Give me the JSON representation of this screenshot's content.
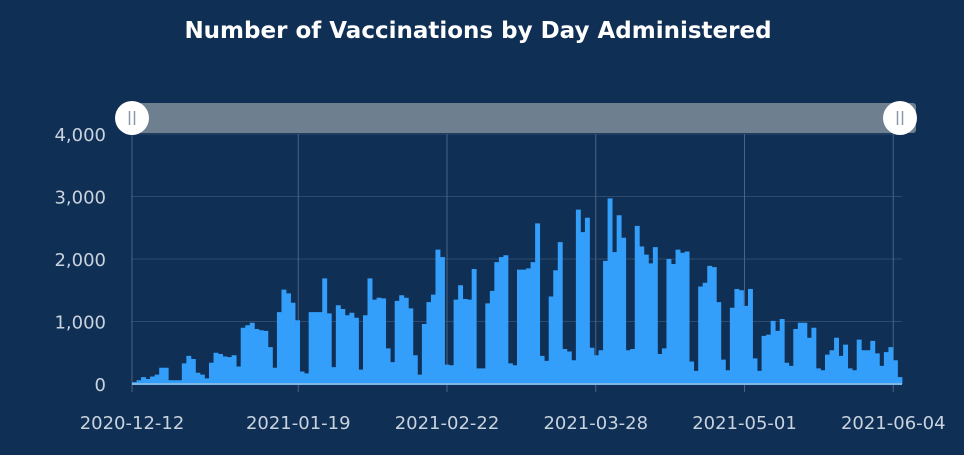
{
  "chart_data": {
    "type": "bar",
    "title": "Number of Vaccinations by Day Administered",
    "xlabel": "",
    "ylabel": "",
    "x_start": "2020-12-12",
    "x_end": "2021-06-06",
    "x_ticks": [
      "2020-12-12",
      "2021-01-19",
      "2021-02-22",
      "2021-03-28",
      "2021-05-01",
      "2021-06-04"
    ],
    "ylim": [
      0,
      4000
    ],
    "y_ticks": [
      0,
      1000,
      2000,
      3000,
      4000
    ],
    "y_tick_labels": [
      "0",
      "1,000",
      "2,000",
      "3,000",
      "4,000"
    ],
    "grid": true,
    "range_slider": {
      "visible": true,
      "from": "2020-12-12",
      "to": "2021-06-06"
    },
    "colors": {
      "background": "#102f54",
      "bar": "#339ffb",
      "grid": "#2e4a6e",
      "slider_track": "#6e7f90",
      "slider_handle": "#ffffff",
      "text": "#c9d3df",
      "title": "#ffffff"
    },
    "values": [
      30,
      60,
      110,
      80,
      120,
      150,
      260,
      260,
      60,
      60,
      60,
      330,
      450,
      400,
      180,
      150,
      90,
      340,
      500,
      480,
      440,
      430,
      460,
      280,
      900,
      940,
      980,
      880,
      860,
      850,
      590,
      260,
      1150,
      1510,
      1450,
      1300,
      1020,
      200,
      170,
      1150,
      1150,
      1150,
      1690,
      1130,
      270,
      1260,
      1200,
      1100,
      1140,
      1060,
      230,
      1100,
      1690,
      1350,
      1380,
      1370,
      570,
      350,
      1330,
      1420,
      1380,
      1210,
      460,
      150,
      960,
      1310,
      1430,
      2150,
      2030,
      310,
      300,
      1350,
      1580,
      1360,
      1350,
      1840,
      250,
      250,
      1290,
      1490,
      1950,
      2030,
      2060,
      330,
      300,
      1830,
      1830,
      1850,
      1950,
      2570,
      450,
      370,
      1400,
      1820,
      2270,
      560,
      520,
      380,
      2790,
      2430,
      2660,
      580,
      460,
      540,
      1970,
      2970,
      2110,
      2700,
      2340,
      540,
      560,
      2530,
      2200,
      2070,
      1930,
      2190,
      480,
      570,
      2000,
      1920,
      2150,
      2100,
      2120,
      360,
      210,
      1560,
      1620,
      1890,
      1870,
      1310,
      390,
      220,
      1220,
      1520,
      1500,
      1250,
      1520,
      410,
      210,
      770,
      790,
      1010,
      850,
      1040,
      340,
      290,
      880,
      980,
      980,
      740,
      900,
      250,
      220,
      470,
      540,
      740,
      450,
      630,
      250,
      220,
      710,
      540,
      540,
      690,
      490,
      290,
      510,
      590,
      380,
      110
    ]
  }
}
